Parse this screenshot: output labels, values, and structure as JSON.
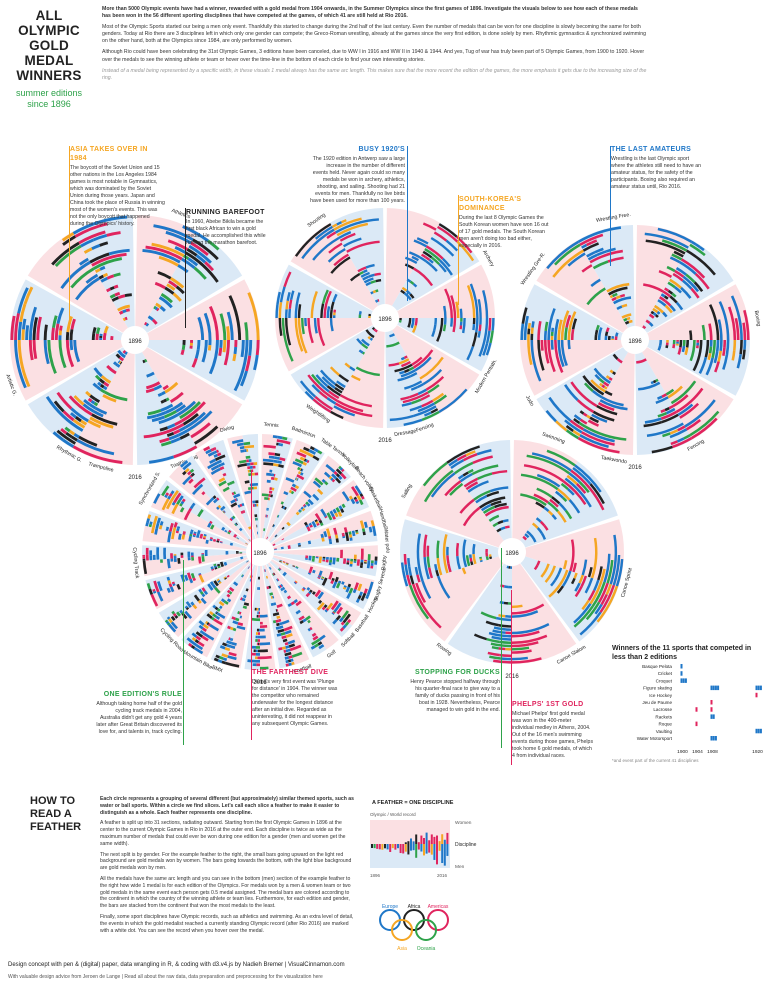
{
  "title": {
    "main": "ALL OLYMPIC GOLD MEDAL WINNERS",
    "sub": "summer editions since 1896"
  },
  "intro": {
    "p1": "More than 5000 Olympic events have had a winner, rewarded with a gold medal from 1904 onwards, in the Summer Olympics since the first games of 1896. Investigate the visuals below to see how each of these medals has been won in the 56 different sporting disciplines that have competed at the games, of which 41 are still held at Rio 2016.",
    "p2": "Most of the Olympic Sports started our being a men only event. Thankfully this started to change during the 2nd half of the last century. Even the number of medals that can be won for one discipline is slowly becoming the same for both genders. Today at Rio there are 3 disciplines left in which only one gender can compete; the Greco-Roman wrestling, already at the games since the very first edition, is done solely by men. Rhythmic gymnastics & synchronized swimming on the other hand, both at the Olympics since 1984, are only performed by women.",
    "p3": "Although Rio could have been celebrating the 31st Olympic Games, 3 editions have been canceled, due to WW I in 1916 and WW II in 1940 & 1944. And yes, Tug of war has truly been part of 5 Olympic Games, from 1900 to 1920. Hover over the medals to see the winning athlete or team or hover over the time-line in the bottom of each circle to find your own interesting stories.",
    "note": "Instead of a medal being represented by a specific width, in these visuals 1 medal always has the same arc length. This makes sure that the more recent the edition of the games, the more emphasis it gets due to the increasing size of the ring."
  },
  "colors": {
    "europe": "#1f77c8",
    "asia": "#f5a623",
    "africa": "#222222",
    "oceania": "#2ea24a",
    "americas": "#e0245e",
    "men_bg": "#dbe9f6",
    "women_bg": "#fbe0e3"
  },
  "circles": [
    {
      "start_year": "1896",
      "end_year": "2016",
      "labels": [
        "Athletics",
        "Artistic G.",
        "Rhythmic G.",
        "Trampoline",
        "Triathlon",
        "Tug of War"
      ]
    },
    {
      "start_year": "1896",
      "end_year": "2016",
      "labels": [
        "Shooting",
        "Archery",
        "Modern Pentath.",
        "Fencing",
        "Dressage",
        "Weightlifting"
      ]
    },
    {
      "start_year": "1896",
      "end_year": "2016",
      "labels": [
        "Wrestling Free.",
        "Wrestling Gre-R.",
        "Boxing",
        "Judo",
        "Taekwondo",
        "Fencing"
      ]
    },
    {
      "start_year": "1896",
      "end_year": "2016",
      "labels": [
        "Diving",
        "Tennis",
        "Badminton",
        "Table Tennis",
        "Volleyball",
        "Beach volley",
        "Basketball",
        "Handball",
        "Water polo",
        "Rugby",
        "Rugby Sevens",
        "Hockey",
        "Baseball",
        "Softball",
        "Golf",
        "Football",
        "Synchronized S.",
        "Cycling Track",
        "Cycling Road",
        "Mountain Bike",
        "BMX"
      ]
    },
    {
      "start_year": "1896",
      "end_year": "2016",
      "labels": [
        "Swimming",
        "Sailing",
        "Rowing",
        "Canoe Sprint",
        "Canoe Slalom"
      ]
    }
  ],
  "annotations": {
    "asia": {
      "title": "ASIA TAKES OVER IN 1984",
      "text": "The boycott of the Soviet Union and 15 other nations in the Los Angeles 1984 games is most notable in Gymnastics, which was dominated by the Soviet Union during those years. Japan and China took the place of Russia in winning most of the women's events. This was not the only boycott that happened during the Olympics' history."
    },
    "barefoot": {
      "title": "RUNNING BAREFOOT",
      "text": "In 1960, Abebe Bikila became the first black African to win a gold medal. He accomplished this while running the marathon barefoot."
    },
    "busy": {
      "title": "BUSY 1920'S",
      "text": "The 1920 edition in Antwerp saw a large increase in the number of different events held. Never again could so many medals be won in archery, athletics, shooting, and sailing. Shooting had 21 events for men. Thankfully no live birds have been used for more than 100 years."
    },
    "korea": {
      "title": "SOUTH-KOREA'S DOMINANCE",
      "text": "During the last 8 Olympic Games the South Korean women have won 16 out of 17 gold medals. The South Korean men aren't doing too bad either, especially in 2016."
    },
    "amateurs": {
      "title": "THE LAST AMATEURS",
      "text": "Wrestling is the last Olympic sport where the athletes still need to have an amateur status, for the safety of the participants. Boxing also required an amateur status until, Rio 2016."
    },
    "onerule": {
      "title": "ONE EDITION'S RULE",
      "text": "Although taking home half of the gold cycling track medals in 2004, Australia didn't get any gold 4 years later after Great Britain discovered its love for, and talents in, track cycling."
    },
    "dive": {
      "title": "THE FARTHEST DIVE",
      "text": "Diving's very first event was 'Plunge for distance' in 1904. The winner was the competitor who remained underwater for the longest distance after an initial dive. Regarded as uninteresting, it did not reappear in any subsequent Olympic Games."
    },
    "ducks": {
      "title": "STOPPING FOR DUCKS",
      "text": "Henry Pearce stopped halfway through his quarter-final race to give way to a family of ducks passing in front of his boat in 1928. Nevertheless, Pearce managed to win gold in the end."
    },
    "phelps": {
      "title": "PHELPS' 1ST GOLD",
      "text": "Michael Phelps' first gold medal was won in the 400-meter individual medley in Athens, 2004. Out of the 16 men's swimming events during those games, Phelps took home 6 gold medals, of which 4 from individual races."
    }
  },
  "chart_data": [
    {
      "type": "timeline",
      "title": "Winners of the 11 sports that competed in less than 2 editions",
      "categories": [
        "Basque Pelota",
        "Cricket",
        "Croquet",
        "Figure skating",
        "Ice Hockey",
        "Jeu de Paume",
        "Lacrosse",
        "Rackets",
        "Roque",
        "Vaulting",
        "Water Motorsport"
      ],
      "x": [
        "1900",
        "1904",
        "1908",
        "1920"
      ],
      "footnote": "*and event part of the current 41 disciplines",
      "events": [
        {
          "sport": "Basque Pelota",
          "year": 1900,
          "colors": [
            "#1f77c8"
          ]
        },
        {
          "sport": "Cricket",
          "year": 1900,
          "colors": [
            "#1f77c8"
          ]
        },
        {
          "sport": "Croquet",
          "year": 1900,
          "colors": [
            "#1f77c8",
            "#1f77c8",
            "#1f77c8"
          ]
        },
        {
          "sport": "Figure skating",
          "year": 1908,
          "colors": [
            "#1f77c8",
            "#1f77c8",
            "#1f77c8",
            "#1f77c8"
          ]
        },
        {
          "sport": "Figure skating",
          "year": 1920,
          "colors": [
            "#1f77c8",
            "#1f77c8",
            "#1f77c8"
          ]
        },
        {
          "sport": "Ice Hockey",
          "year": 1920,
          "colors": [
            "#e0245e"
          ]
        },
        {
          "sport": "Jeu de Paume",
          "year": 1908,
          "colors": [
            "#e0245e"
          ]
        },
        {
          "sport": "Lacrosse",
          "year": 1904,
          "colors": [
            "#e0245e"
          ]
        },
        {
          "sport": "Lacrosse",
          "year": 1908,
          "colors": [
            "#e0245e"
          ]
        },
        {
          "sport": "Rackets",
          "year": 1908,
          "colors": [
            "#1f77c8",
            "#1f77c8"
          ]
        },
        {
          "sport": "Roque",
          "year": 1904,
          "colors": [
            "#e0245e"
          ]
        },
        {
          "sport": "Vaulting",
          "year": 1920,
          "colors": [
            "#1f77c8",
            "#1f77c8",
            "#1f77c8"
          ]
        },
        {
          "sport": "Water Motorsport",
          "year": 1908,
          "colors": [
            "#1f77c8",
            "#1f77c8",
            "#1f77c8"
          ]
        }
      ]
    },
    {
      "type": "feather-legend",
      "title": "A FEATHER = ONE DISCIPLINE",
      "labels": [
        "Olympic / World record",
        "Women",
        "Discipline",
        "Men"
      ],
      "x": [
        "1896",
        "2016"
      ]
    }
  ],
  "legend": {
    "continents": [
      "Europe",
      "Africa",
      "Americas",
      "Asia",
      "Oceania"
    ]
  },
  "howto": {
    "title": "HOW TO READ A FEATHER",
    "lead": "Each circle represents a grouping of several different (but approximately) similar themed sports, such as water or ball sports. Within a circle we find slices. Let's call each slice a feather to make it easier to distinguish as a whole. Each feather represents one discipline.",
    "p1": "A feather is split up into 31 sections, radiating outward. Starting from the first Olympic Games in 1896 at the center to the current Olympic Games in Rio in 2016 at the outer end. Each discipline is twice as wide as the maximum number of medals that could ever be won during one edition for a gender (men and women get the same width).",
    "p2": "The next split is by gender. For the example feather to the right, the small bars going upward on the light red background are gold medals won by women. The bars going towards the bottom, with the light blue background are gold medals won by men.",
    "p3": "All the medals have the same arc length and you can see in the bottom (men) section of the example feather to the right how wide 1 medal is for each edition of the Olympics. For medals won by a men & women team or two gold medals in the same event each person gets 0.5 medal assigned. The medal bars are colored according to the continent in which the country of the winning athlete or team lies. Furthermore, for each edition and gender, the bars are stacked from the continent that won the most medals to the least.",
    "p4": "Finally, some sport disciplines have Olympic records, such as athletics and swimming. As an extra level of detail, the events in which the gold medalist reached a currently standing Olympic record (after Rio 2016) are marked with a white dot. You can see the record when you hover over the medal."
  },
  "footer": {
    "line1": "Design concept with pen & (digital) paper, data wrangling in R, & coding with d3.v4.js by Nadieh Bremer  |  VisualCinnamon.com",
    "line2": "With valuable design advice from Jeroen de Lange  |  Read all about the raw data, data preparation and preprocessing for the visualization here"
  }
}
